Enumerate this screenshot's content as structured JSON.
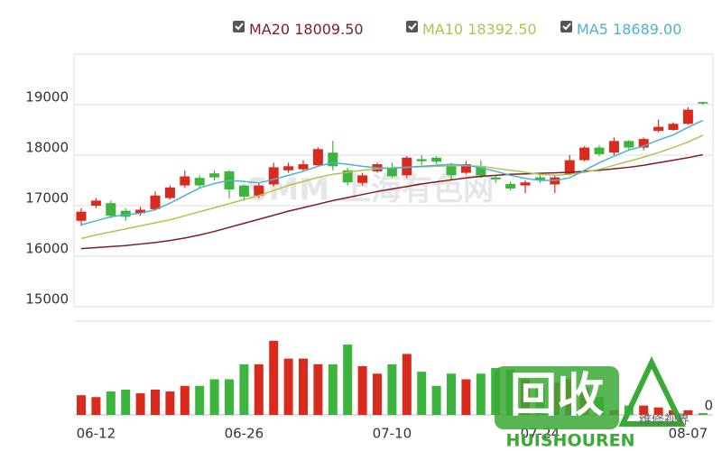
{
  "chart_data": [
    {
      "type": "candlestick",
      "categories": [
        null,
        "06-12",
        null,
        null,
        null,
        null,
        null,
        null,
        null,
        null,
        null,
        "06-26",
        null,
        null,
        null,
        null,
        null,
        null,
        null,
        null,
        null,
        "07-10",
        null,
        null,
        null,
        null,
        null,
        null,
        null,
        null,
        null,
        "07-24",
        null,
        null,
        null,
        null,
        null,
        null,
        null,
        null,
        null,
        "08-07",
        null
      ],
      "open": [
        16700,
        17000,
        17050,
        16900,
        16850,
        16930,
        17150,
        17400,
        17550,
        17640,
        17680,
        17400,
        17200,
        17420,
        17700,
        17720,
        17800,
        18050,
        17700,
        17450,
        17680,
        17750,
        17600,
        17920,
        17950,
        17820,
        17650,
        17760,
        17560,
        17430,
        17400,
        17560,
        17420,
        17620,
        17900,
        18150,
        18050,
        18280,
        18150,
        18480,
        18500,
        18620,
        19050
      ],
      "high": [
        16950,
        17150,
        17100,
        16950,
        16980,
        17280,
        17400,
        17700,
        17600,
        17700,
        17700,
        17420,
        17450,
        17850,
        17850,
        17900,
        18150,
        18280,
        17750,
        17650,
        17850,
        17850,
        17980,
        18000,
        17980,
        17850,
        17880,
        17900,
        17600,
        17480,
        17500,
        17620,
        17600,
        18000,
        18180,
        18200,
        18350,
        18300,
        18350,
        18700,
        18650,
        18950,
        19060
      ],
      "low": [
        16600,
        16950,
        16750,
        16700,
        16800,
        16900,
        17120,
        17350,
        17350,
        17500,
        17150,
        17100,
        17150,
        17380,
        17650,
        17680,
        17780,
        17700,
        17400,
        17400,
        17650,
        17550,
        17550,
        17800,
        17820,
        17500,
        17620,
        17550,
        17450,
        17300,
        17250,
        17450,
        17250,
        17600,
        17880,
        17980,
        18000,
        18100,
        18100,
        18450,
        18480,
        18600,
        19000
      ],
      "close": [
        16880,
        17100,
        16800,
        16780,
        16920,
        17200,
        17360,
        17580,
        17400,
        17560,
        17320,
        17180,
        17400,
        17760,
        17780,
        17820,
        18120,
        17780,
        17460,
        17600,
        17820,
        17580,
        17950,
        17880,
        17870,
        17600,
        17820,
        17600,
        17520,
        17340,
        17460,
        17500,
        17560,
        17900,
        18150,
        18020,
        18280,
        18150,
        18320,
        18560,
        18620,
        18900,
        19020
      ],
      "up_color": "#d92a1e",
      "down_color": "#3db43d",
      "ylim": [
        15000,
        20000
      ],
      "yticks": [
        15000,
        16000,
        17000,
        18000,
        19000
      ],
      "grid": true,
      "series": [
        {
          "name": "MA20",
          "legend_label": "18009.50",
          "color": "#7d1e22",
          "values": [
            16150,
            16170,
            16190,
            16210,
            16240,
            16270,
            16310,
            16360,
            16420,
            16490,
            16570,
            16650,
            16730,
            16810,
            16890,
            16960,
            17030,
            17100,
            17160,
            17220,
            17280,
            17330,
            17380,
            17430,
            17470,
            17510,
            17550,
            17580,
            17600,
            17620,
            17630,
            17640,
            17650,
            17660,
            17680,
            17700,
            17730,
            17760,
            17800,
            17850,
            17900,
            17950,
            18009.5
          ]
        },
        {
          "name": "MA10",
          "legend_label": "18392.50",
          "color": "#b3c24e",
          "values": [
            16350,
            16420,
            16480,
            16540,
            16600,
            16660,
            16720,
            16800,
            16880,
            16960,
            17040,
            17120,
            17200,
            17300,
            17400,
            17480,
            17560,
            17620,
            17660,
            17700,
            17730,
            17750,
            17760,
            17770,
            17780,
            17790,
            17790,
            17780,
            17740,
            17700,
            17660,
            17620,
            17600,
            17620,
            17660,
            17720,
            17800,
            17880,
            17960,
            18050,
            18150,
            18260,
            18392.5
          ]
        },
        {
          "name": "MA5",
          "legend_label": "18689.00",
          "color": "#4fb1d0",
          "values": [
            16620,
            16700,
            16780,
            16820,
            16850,
            16920,
            17050,
            17200,
            17350,
            17440,
            17500,
            17480,
            17450,
            17520,
            17600,
            17680,
            17780,
            17850,
            17820,
            17780,
            17750,
            17740,
            17760,
            17780,
            17800,
            17820,
            17800,
            17750,
            17680,
            17600,
            17540,
            17500,
            17500,
            17550,
            17700,
            17850,
            17980,
            18100,
            18180,
            18300,
            18400,
            18550,
            18689
          ]
        }
      ]
    },
    {
      "type": "bar",
      "values": [
        21,
        19,
        25,
        27,
        23,
        27,
        25,
        31,
        31,
        38,
        38,
        54,
        54,
        79,
        60,
        60,
        54,
        54,
        75,
        52,
        44,
        54,
        65,
        46,
        31,
        44,
        38,
        44,
        50,
        48,
        38,
        29,
        34,
        38,
        29,
        19,
        5,
        10,
        10,
        8,
        5,
        5,
        2
      ],
      "ylim": [
        0,
        100
      ],
      "yticks": [
        0
      ]
    }
  ],
  "watermarks": {
    "source": "SMM 上海有色网",
    "logo": "回收",
    "logo_sub": "HUISHOUREN",
    "channel": "维修视界"
  }
}
